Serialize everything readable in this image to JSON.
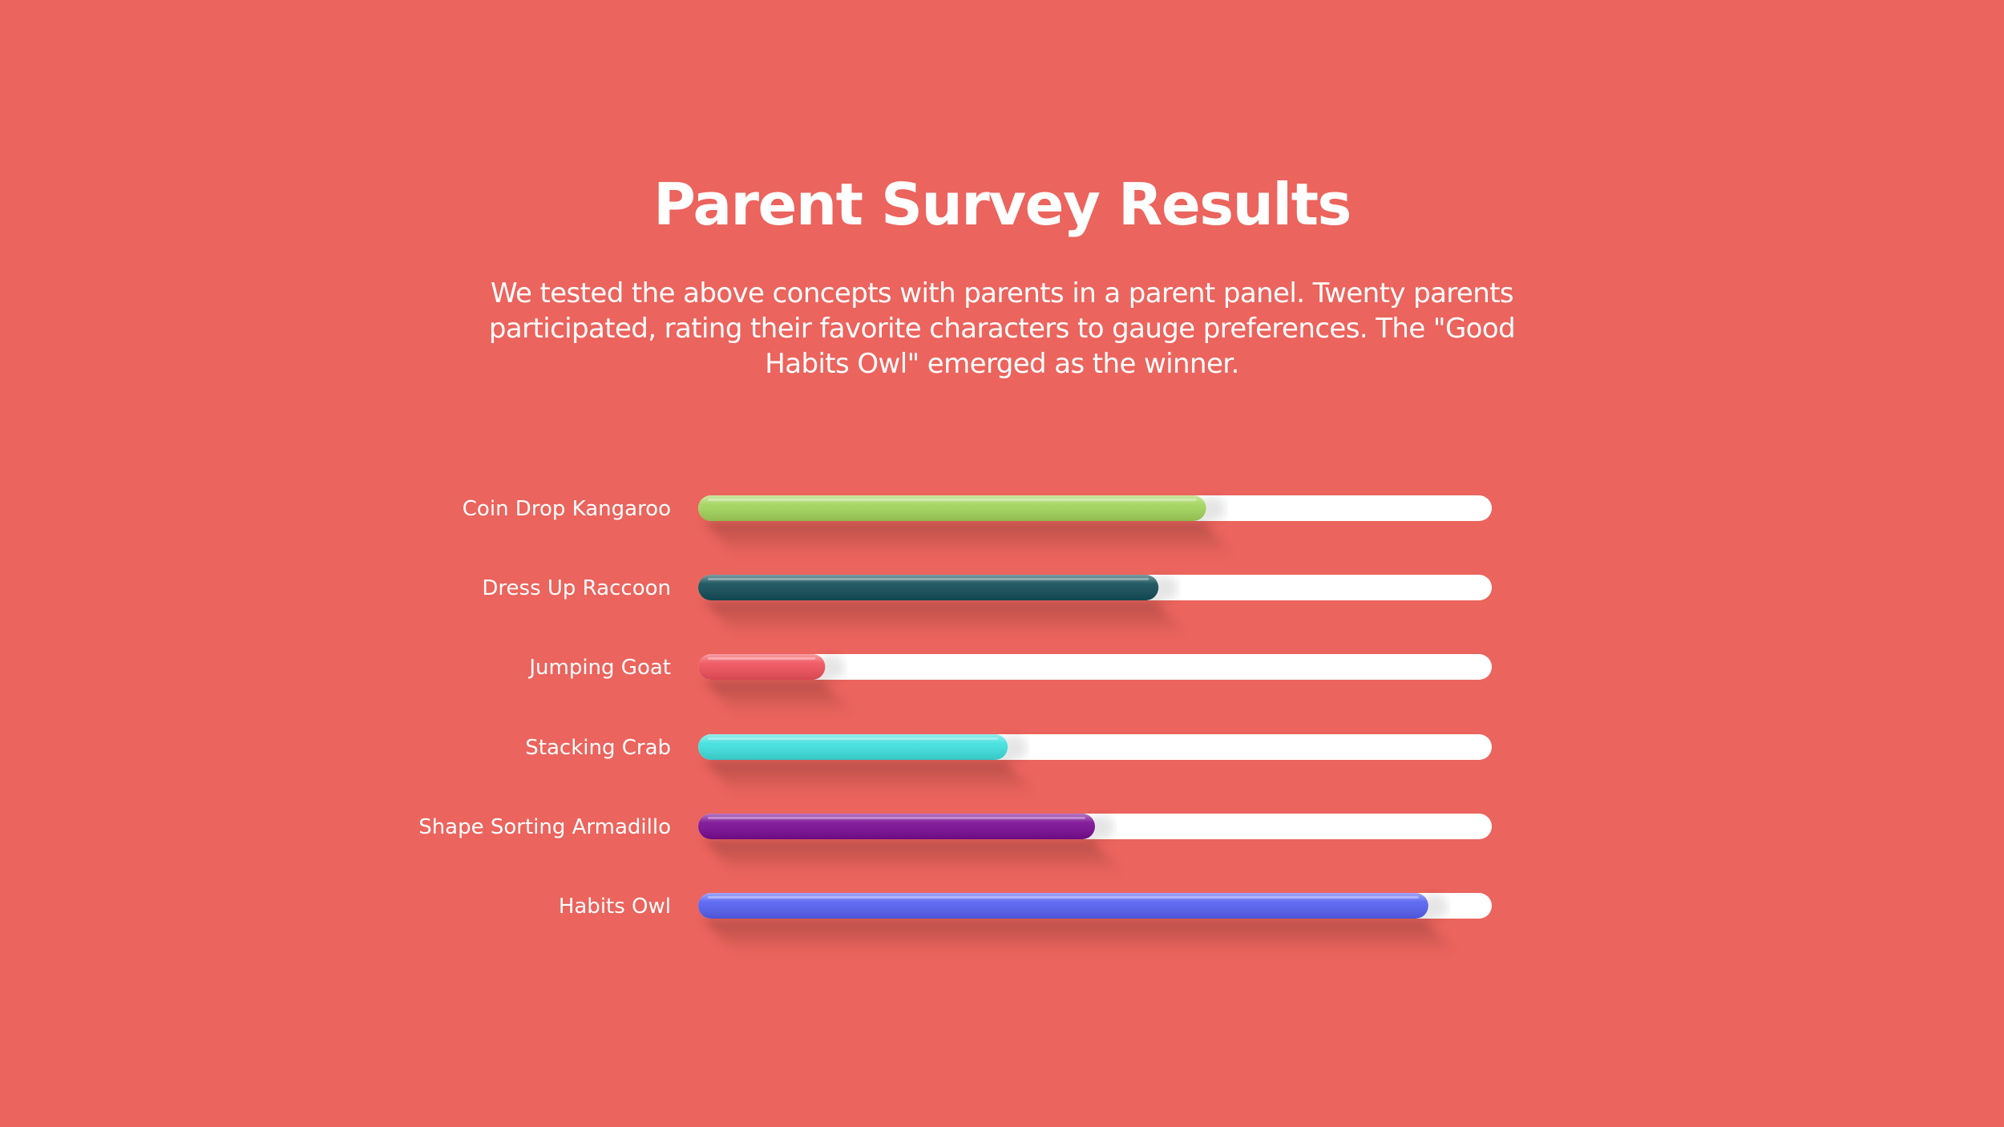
{
  "slide": {
    "background": "#EB645D",
    "title": "Parent Survey Results",
    "description": "We tested the above concepts with parents in a parent panel. Twenty parents participated, rating their favorite characters to gauge preferences. The \"Good Habits Owl\" emerged as the winner."
  },
  "chart_data": {
    "type": "bar",
    "orientation": "horizontal",
    "categories": [
      "Coin Drop Kangaroo",
      "Dress Up Raccoon",
      "Jumping Goat",
      "Stacking Crab",
      "Shape Sorting Armadillo",
      "Habits Owl"
    ],
    "values": [
      64,
      58,
      16,
      39,
      50,
      92
    ],
    "colors": [
      "#A2D45A",
      "#124D58",
      "#F0505A",
      "#3EE0DE",
      "#7A0C93",
      "#5560F0"
    ],
    "track_color": "#FFFFFF",
    "xlim": [
      0,
      100
    ],
    "grid": false,
    "legend": "none",
    "title": "",
    "xlabel": "",
    "ylabel": ""
  }
}
